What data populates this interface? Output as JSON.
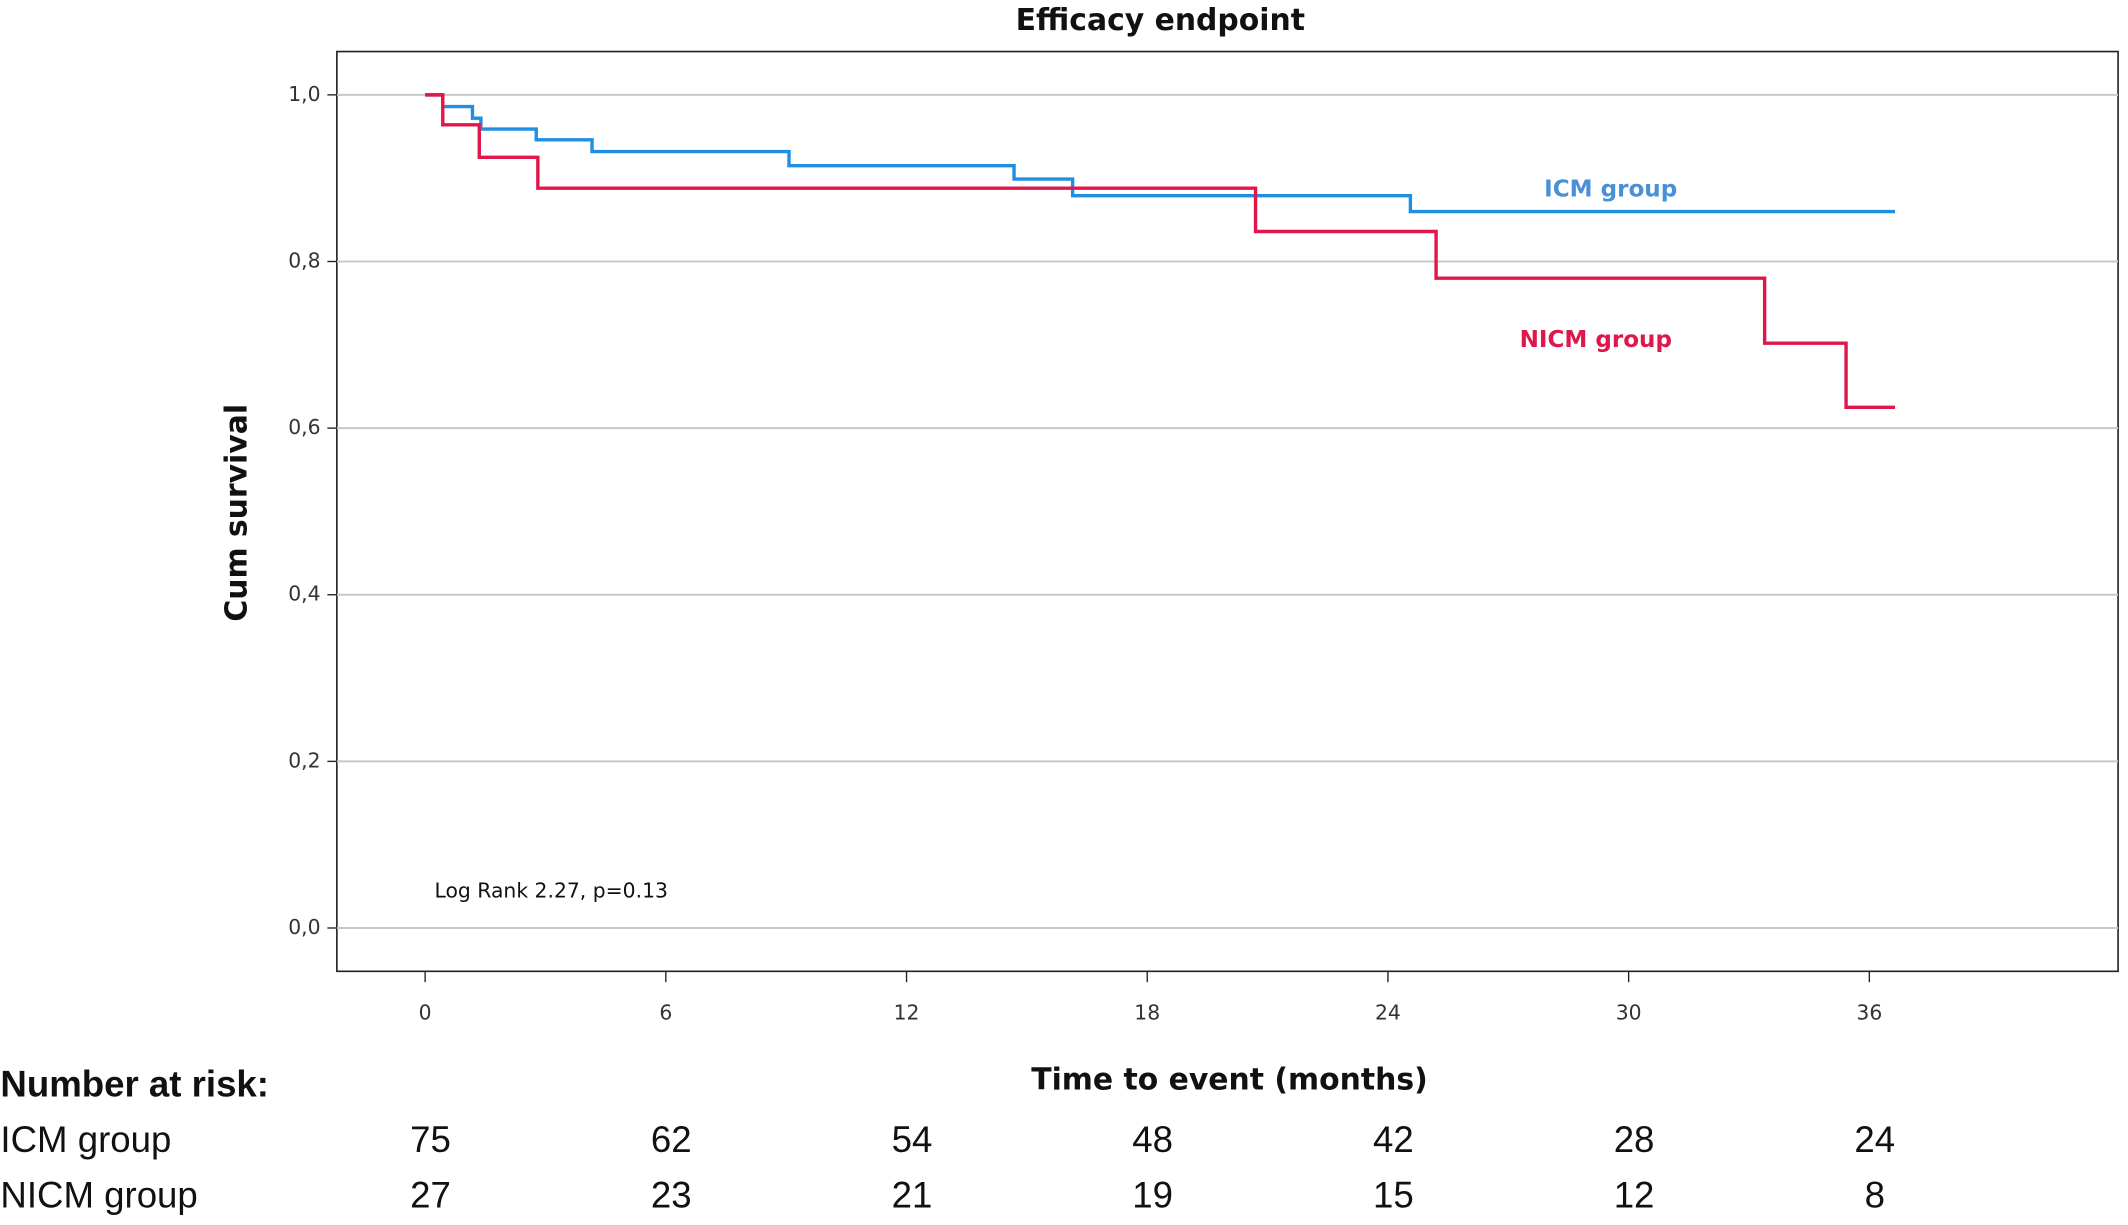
{
  "chart_data": {
    "type": "step",
    "title": "Efficacy endpoint",
    "x_label": "Time to event (months)",
    "y_label": "Cum survival",
    "xlim": [
      -2.2,
      42.2
    ],
    "xticks": [
      0,
      6,
      12,
      18,
      24,
      30,
      36
    ],
    "ylim": [
      -0.052,
      1.052
    ],
    "yticks": [
      {
        "value": 0,
        "label": "0,0"
      },
      {
        "value": 0.2,
        "label": "0,2"
      },
      {
        "value": 0.4,
        "label": "0,4"
      },
      {
        "value": 0.6,
        "label": "0,6"
      },
      {
        "value": 0.8,
        "label": "0,8"
      },
      {
        "value": 1,
        "label": "1,0"
      }
    ],
    "grid": true,
    "series": [
      {
        "name": "ICM group",
        "color": "#1e8fe1",
        "label_color": "#4a90d9",
        "x": [
          0,
          0.44,
          1.18,
          1.39,
          2.77,
          4.16,
          9.07,
          14.68,
          16.14,
          24.56,
          36.64
        ],
        "values": [
          1.0,
          0.986,
          0.972,
          0.959,
          0.946,
          0.932,
          0.915,
          0.899,
          0.879,
          0.86,
          0.86
        ]
      },
      {
        "name": "NICM group",
        "color": "#e0174a",
        "label_color": "#e0174a",
        "x": [
          0,
          0.44,
          1.35,
          2.81,
          20.7,
          25.2,
          33.39,
          35.42,
          36.64
        ],
        "values": [
          1.0,
          0.964,
          0.925,
          0.888,
          0.836,
          0.78,
          0.702,
          0.625,
          0.625
        ]
      }
    ],
    "annotation": "Log Rank 2.27, p=0.13",
    "risk_table": {
      "title": "Number at risk:",
      "rows": [
        {
          "name": "ICM group",
          "values": [
            75,
            62,
            54,
            48,
            42,
            28,
            24
          ]
        },
        {
          "name": "NICM group",
          "values": [
            27,
            23,
            21,
            19,
            15,
            12,
            8
          ]
        }
      ]
    }
  }
}
